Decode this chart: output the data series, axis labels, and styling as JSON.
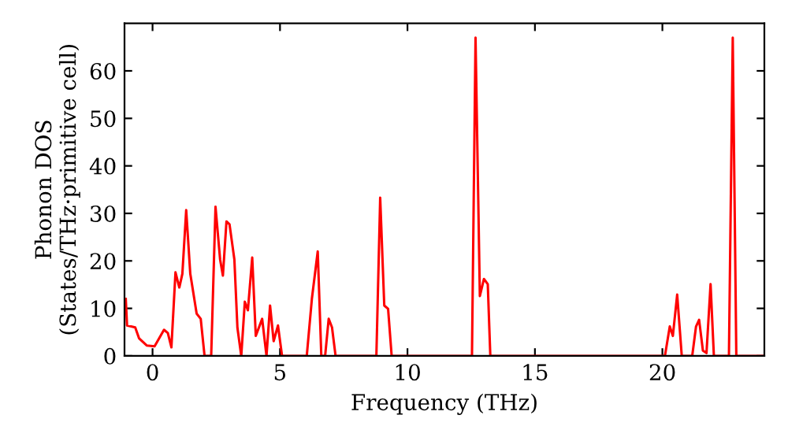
{
  "chart_data": {
    "type": "line",
    "xlabel": "Frequency (THz)",
    "ylabel": "Phonon DOS\n(States/THz·primitive cell)",
    "series": [
      {
        "color": "#ff0000",
        "x": [
          -1.05,
          -1.0,
          -0.68,
          -0.53,
          -0.23,
          0.08,
          0.45,
          0.6,
          0.74,
          0.9,
          1.05,
          1.17,
          1.32,
          1.48,
          1.73,
          1.89,
          2.04,
          2.3,
          2.47,
          2.65,
          2.76,
          2.9,
          3.02,
          3.21,
          3.33,
          3.48,
          3.62,
          3.74,
          3.91,
          4.05,
          4.3,
          4.47,
          4.61,
          4.75,
          4.92,
          5.08,
          6.05,
          6.25,
          6.48,
          6.62,
          6.77,
          6.91,
          7.04,
          7.18,
          8.78,
          8.93,
          9.09,
          9.24,
          9.38,
          12.53,
          12.67,
          12.84,
          13.0,
          13.15,
          13.25,
          20.1,
          20.29,
          20.41,
          20.58,
          20.76,
          21.17,
          21.32,
          21.44,
          21.59,
          21.73,
          21.89,
          22.02,
          22.61,
          22.76,
          22.9,
          23.95
        ],
        "values": [
          12,
          6.4,
          6,
          3.7,
          2.2,
          2,
          5.5,
          4.8,
          1.8,
          17.6,
          14.4,
          17.3,
          30.7,
          17.3,
          8.9,
          7.8,
          0,
          0,
          31.4,
          20.3,
          16.9,
          28.3,
          27.7,
          20.3,
          5.9,
          0,
          11.4,
          9.6,
          20.7,
          4.2,
          7.8,
          0,
          10.6,
          3.1,
          6.4,
          0,
          0,
          12,
          22,
          0,
          0,
          7.8,
          6,
          0,
          0,
          33.3,
          10.6,
          9.9,
          0,
          0,
          67,
          12.6,
          16.2,
          15.1,
          0,
          0,
          6.2,
          4.2,
          12.9,
          0,
          0,
          6.2,
          7.6,
          1.1,
          0.6,
          15.1,
          0,
          0,
          67,
          0,
          0
        ]
      }
    ],
    "xlim": [
      -1.1,
      24
    ],
    "ylim": [
      0,
      70
    ],
    "xticks": [
      0,
      5,
      10,
      15,
      20
    ],
    "yticks": [
      0,
      10,
      20,
      30,
      40,
      50,
      60
    ],
    "grid": false,
    "legend": false,
    "marker": "none",
    "line_style": "solid"
  }
}
